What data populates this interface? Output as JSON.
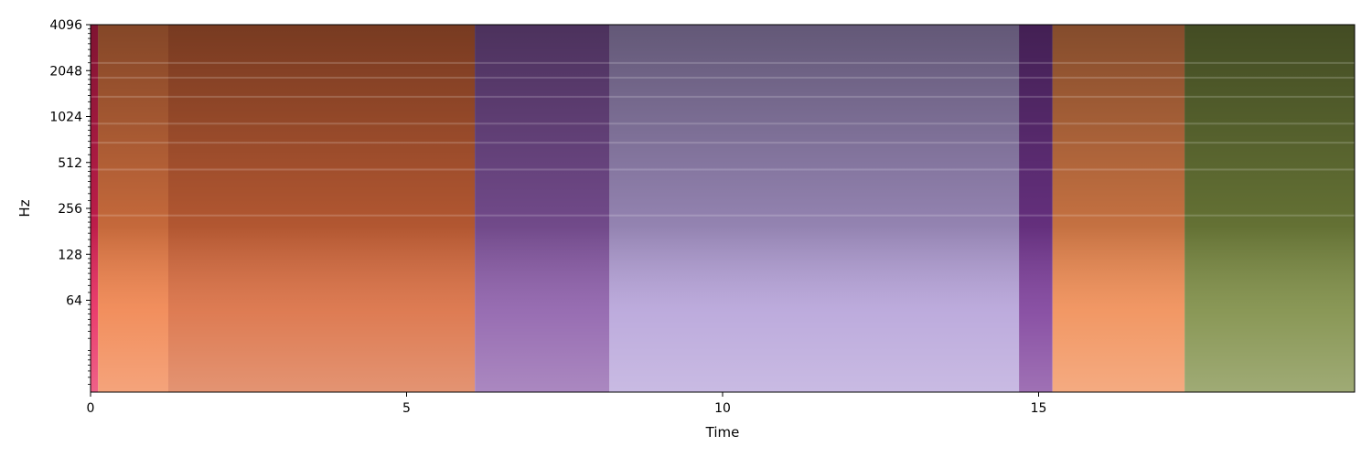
{
  "chart_data": {
    "type": "heatmap",
    "title": "",
    "xlabel": "Time",
    "ylabel": "Hz",
    "xlim": [
      0,
      20
    ],
    "ylim": [
      16,
      4096
    ],
    "y_scale": "log2",
    "grid": false,
    "x_ticks": [
      0,
      5,
      10,
      15
    ],
    "y_ticks": [
      64,
      128,
      256,
      512,
      1024,
      2048,
      4096
    ],
    "segments": [
      {
        "start": 0.0,
        "end": 0.12,
        "color": "#e8245a"
      },
      {
        "start": 0.12,
        "end": 1.23,
        "color": "#f08048"
      },
      {
        "start": 1.23,
        "end": 6.08,
        "color": "#d96a3c"
      },
      {
        "start": 6.08,
        "end": 8.21,
        "color": "#8a5aa8"
      },
      {
        "start": 8.21,
        "end": 14.69,
        "color": "#b4a0d8"
      },
      {
        "start": 14.69,
        "end": 15.22,
        "color": "#7a3a98"
      },
      {
        "start": 15.22,
        "end": 17.31,
        "color": "#f08a50"
      },
      {
        "start": 17.31,
        "end": 20.0,
        "color": "#7a8a40"
      }
    ],
    "harmonic_lines_hz": [
      230,
      460,
      690,
      920,
      1380,
      1840,
      2300
    ]
  }
}
